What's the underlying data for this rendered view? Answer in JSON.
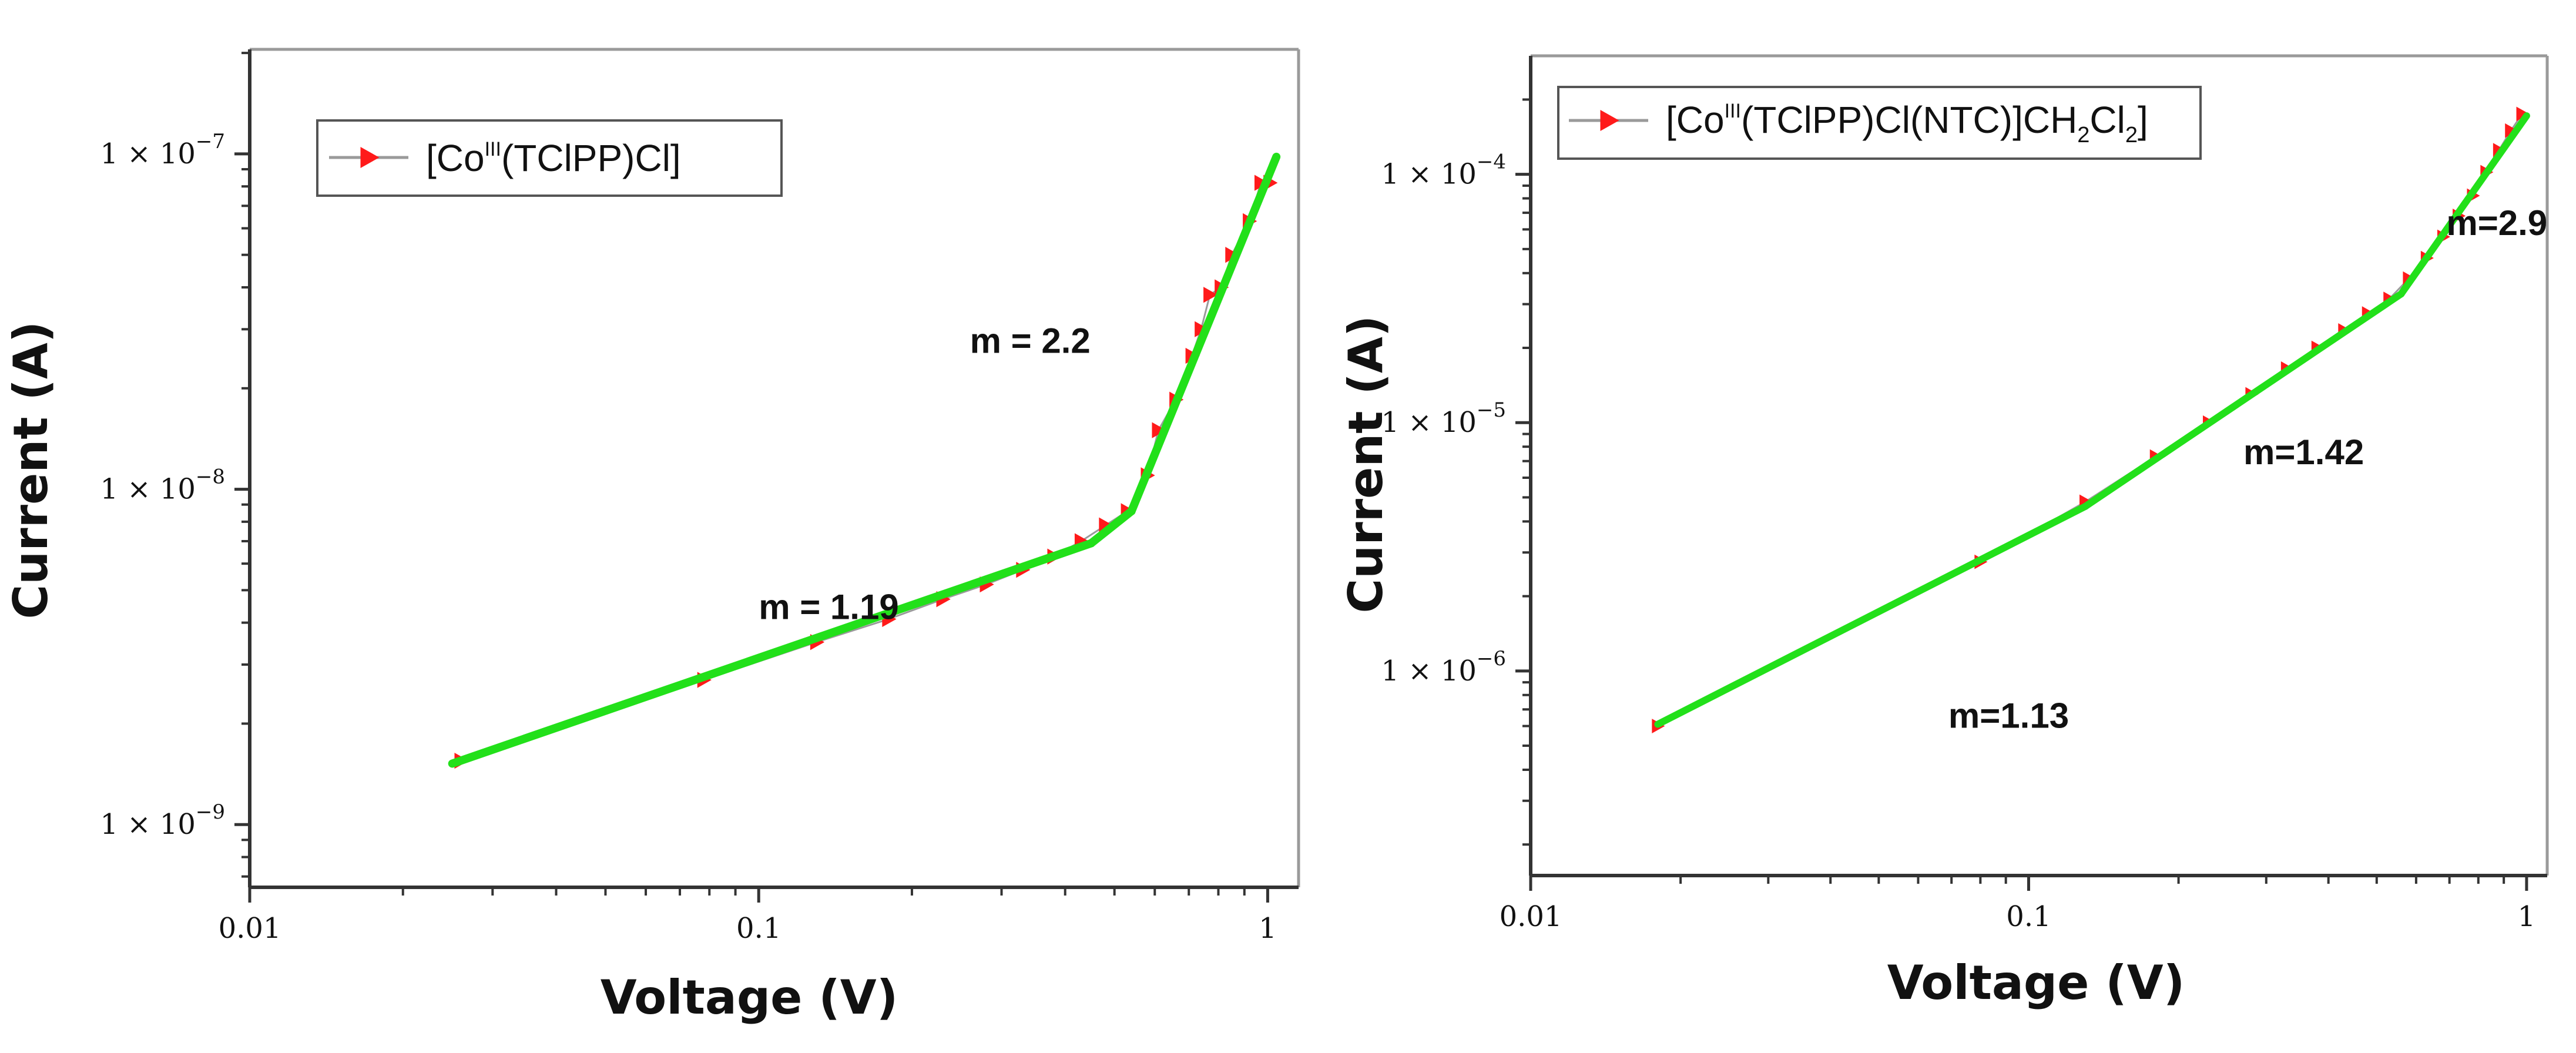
{
  "chart_data": [
    {
      "type": "scatter",
      "xscale": "log",
      "yscale": "log",
      "xlim": [
        0.01,
        1.15
      ],
      "ylim": [
        6.5e-10,
        2.05e-07
      ],
      "xlabel": "Voltage (V)",
      "ylabel": "Current (A)",
      "xticks": [
        {
          "value": 0.01,
          "label": "0.01"
        },
        {
          "value": 0.1,
          "label": "0.1"
        },
        {
          "value": 1,
          "label": "1"
        }
      ],
      "yticks": [
        {
          "value": 1e-09,
          "base": "1 × 10",
          "exp": "−9"
        },
        {
          "value": 1e-08,
          "base": "1 × 10",
          "exp": "−8"
        },
        {
          "value": 1e-07,
          "base": "1 × 10",
          "exp": "−7"
        }
      ],
      "legend": {
        "prefix": "[Co",
        "sup": "III",
        "mid": "(TClPP)Cl]",
        "sub": "",
        "rest": "",
        "location": "top-left"
      },
      "series": [
        {
          "name": "[CoIII(TClPP)Cl]",
          "marker_color": "#ff1a1a",
          "x": [
            0.026,
            0.078,
            0.13,
            0.18,
            0.23,
            0.28,
            0.33,
            0.38,
            0.43,
            0.48,
            0.53,
            0.58,
            0.61,
            0.66,
            0.71,
            0.74,
            0.77,
            0.81,
            0.85,
            0.92,
            0.97,
            1.01
          ],
          "y": [
            1.55e-09,
            2.7e-09,
            3.5e-09,
            4.1e-09,
            4.7e-09,
            5.2e-09,
            5.75e-09,
            6.3e-09,
            7e-09,
            7.8e-09,
            8.6e-09,
            1.1e-08,
            1.5e-08,
            1.85e-08,
            2.5e-08,
            3e-08,
            3.8e-08,
            4e-08,
            5e-08,
            6.3e-08,
            8.2e-08,
            8.2e-08
          ]
        }
      ],
      "fits": [
        {
          "x": [
            0.025,
            0.45
          ],
          "y": [
            1.52e-09,
            6.9e-09
          ],
          "color": "#22e01a"
        },
        {
          "x": [
            0.45,
            0.54
          ],
          "y": [
            6.9e-09,
            8.6e-09
          ],
          "color": "#22e01a"
        },
        {
          "x": [
            0.54,
            1.04
          ],
          "y": [
            8.6e-09,
            9.8e-08
          ],
          "color": "#22e01a"
        }
      ],
      "annotations": [
        {
          "text": "m = 1.19",
          "x": 0.1,
          "y": 4.1e-09
        },
        {
          "text": "m = 2.2",
          "x": 0.26,
          "y": 2.55e-08
        }
      ]
    },
    {
      "type": "scatter",
      "xscale": "log",
      "yscale": "log",
      "xlim": [
        0.01,
        1.1
      ],
      "ylim": [
        1.5e-07,
        0.0003
      ],
      "xlabel": "Voltage (V)",
      "ylabel": "Current (A)",
      "xticks": [
        {
          "value": 0.01,
          "label": "0.01"
        },
        {
          "value": 0.1,
          "label": "0.1"
        },
        {
          "value": 1,
          "label": "1"
        }
      ],
      "yticks": [
        {
          "value": 1e-06,
          "base": "1 × 10",
          "exp": "−6"
        },
        {
          "value": 1e-05,
          "base": "1 × 10",
          "exp": "−5"
        },
        {
          "value": 0.0001,
          "base": "1 × 10",
          "exp": "−4"
        }
      ],
      "legend": {
        "prefix": "[Co",
        "sup": "III",
        "mid": "(TClPP)Cl(NTC)]CH",
        "sub": "2",
        "rest": "Cl",
        "sub2": "2",
        "end": "]",
        "location": "top-left"
      },
      "series": [
        {
          "name": "[CoIII(TClPP)Cl(NTC)]CH2Cl2",
          "marker_color": "#ff1a1a",
          "x": [
            0.018,
            0.08,
            0.13,
            0.18,
            0.23,
            0.28,
            0.33,
            0.38,
            0.43,
            0.48,
            0.53,
            0.58,
            0.63,
            0.68,
            0.73,
            0.78,
            0.83,
            0.88,
            0.93,
            0.98
          ],
          "y": [
            6e-07,
            2.75e-06,
            4.8e-06,
            7.3e-06,
            1e-05,
            1.3e-05,
            1.65e-05,
            2e-05,
            2.35e-05,
            2.75e-05,
            3.15e-05,
            3.8e-05,
            4.6e-05,
            5.6e-05,
            6.8e-05,
            8.2e-05,
            0.000102,
            0.000125,
            0.00015,
            0.000175
          ]
        }
      ],
      "fits": [
        {
          "x": [
            0.018,
            0.13
          ],
          "y": [
            6.1e-07,
            4.6e-06
          ],
          "color": "#22e01a"
        },
        {
          "x": [
            0.13,
            0.56
          ],
          "y": [
            4.6e-06,
            3.3e-05
          ],
          "color": "#22e01a"
        },
        {
          "x": [
            0.56,
            1.0
          ],
          "y": [
            3.3e-05,
            0.000172
          ],
          "color": "#22e01a"
        }
      ],
      "annotations": [
        {
          "text": "m=1.13",
          "x": 0.069,
          "y": 5.9e-07
        },
        {
          "text": "m=1.42",
          "x": 0.27,
          "y": 6.8e-06
        },
        {
          "text": "m=2.9",
          "x": 0.69,
          "y": 5.7e-05
        }
      ]
    }
  ]
}
